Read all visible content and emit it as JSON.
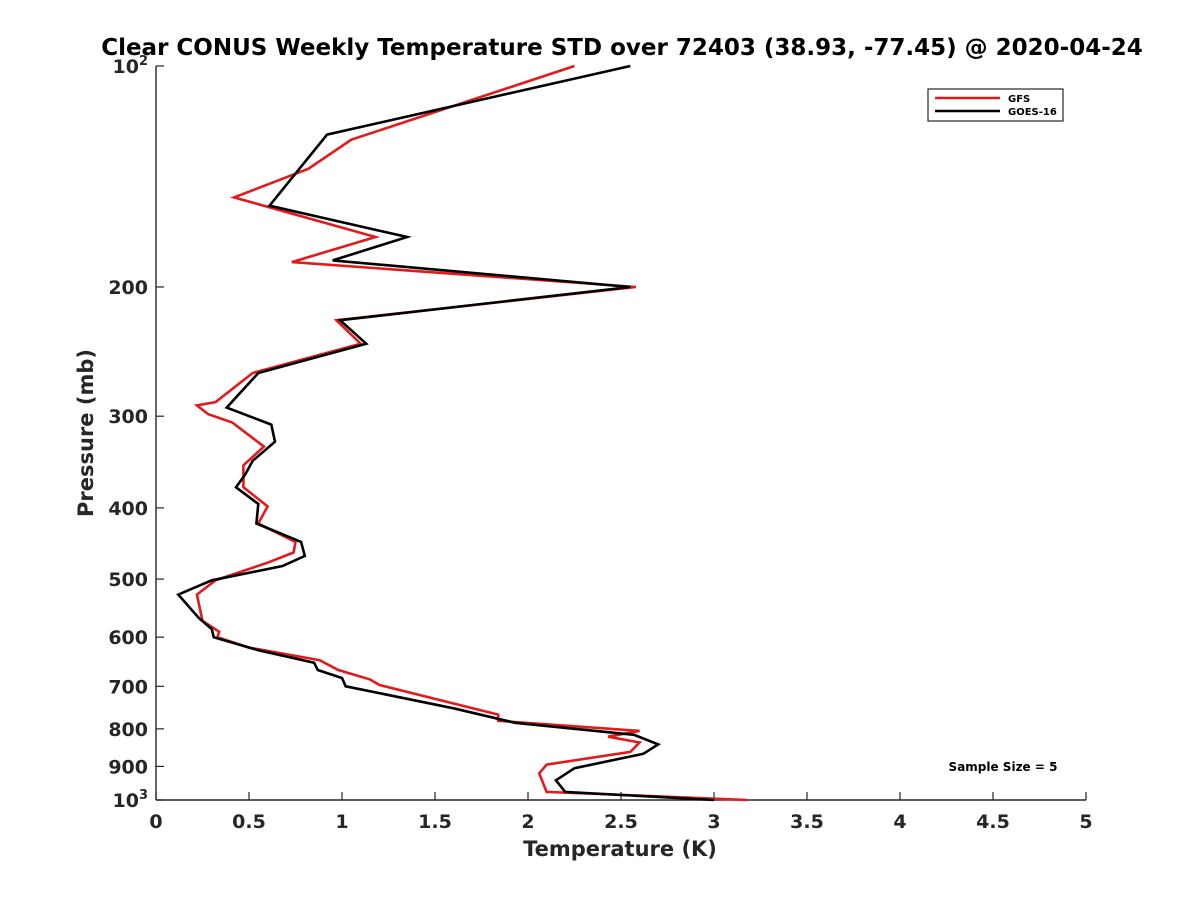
{
  "chart_data": {
    "type": "line",
    "title": "Clear CONUS Weekly Temperature STD over 72403 (38.93, -77.45) @ 2020-04-24",
    "xlabel": "Temperature (K)",
    "ylabel": "Pressure (mb)",
    "xlim": [
      0,
      5
    ],
    "ylim": [
      100,
      1000
    ],
    "y_scale": "log",
    "y_reversed": true,
    "x_ticks": [
      "0",
      "0.5",
      "1",
      "1.5",
      "2",
      "2.5",
      "3",
      "3.5",
      "4",
      "4.5",
      "5"
    ],
    "y_ticks": [
      {
        "value": 100,
        "base": "10",
        "exp": "2"
      },
      {
        "value": 200,
        "label": "200"
      },
      {
        "value": 300,
        "label": "300"
      },
      {
        "value": 400,
        "label": "400"
      },
      {
        "value": 500,
        "label": "500"
      },
      {
        "value": 600,
        "label": "600"
      },
      {
        "value": 700,
        "label": "700"
      },
      {
        "value": 800,
        "label": "800"
      },
      {
        "value": 900,
        "label": "900"
      },
      {
        "value": 1000,
        "base": "10",
        "exp": "3"
      }
    ],
    "grid": false,
    "legend_position": "top-right",
    "series": [
      {
        "name": "GFS",
        "color": "#e31a1c",
        "points": [
          [
            2.25,
            100
          ],
          [
            1.05,
            126
          ],
          [
            0.82,
            138
          ],
          [
            0.42,
            151
          ],
          [
            1.18,
            171
          ],
          [
            0.73,
            185
          ],
          [
            2.58,
            200
          ],
          [
            0.97,
            222
          ],
          [
            1.1,
            239
          ],
          [
            0.52,
            262
          ],
          [
            0.32,
            287
          ],
          [
            0.22,
            290
          ],
          [
            0.28,
            298
          ],
          [
            0.41,
            306
          ],
          [
            0.58,
            330
          ],
          [
            0.47,
            350
          ],
          [
            0.47,
            375
          ],
          [
            0.6,
            398
          ],
          [
            0.55,
            420
          ],
          [
            0.75,
            445
          ],
          [
            0.74,
            460
          ],
          [
            0.6,
            475
          ],
          [
            0.32,
            502
          ],
          [
            0.22,
            525
          ],
          [
            0.25,
            570
          ],
          [
            0.34,
            590
          ],
          [
            0.33,
            600
          ],
          [
            0.5,
            620
          ],
          [
            0.88,
            645
          ],
          [
            0.98,
            665
          ],
          [
            1.15,
            685
          ],
          [
            1.2,
            697
          ],
          [
            1.84,
            765
          ],
          [
            1.84,
            780
          ],
          [
            2.6,
            805
          ],
          [
            2.43,
            820
          ],
          [
            2.6,
            835
          ],
          [
            2.55,
            860
          ],
          [
            2.1,
            895
          ],
          [
            2.06,
            920
          ],
          [
            2.1,
            975
          ],
          [
            3.18,
            1000
          ]
        ]
      },
      {
        "name": "GOES-16",
        "color": "#000000",
        "points": [
          [
            2.55,
            100
          ],
          [
            0.92,
            124
          ],
          [
            0.61,
            155
          ],
          [
            1.35,
            171
          ],
          [
            0.95,
            184
          ],
          [
            2.55,
            200
          ],
          [
            0.99,
            222
          ],
          [
            1.13,
            239
          ],
          [
            0.55,
            262
          ],
          [
            0.38,
            292
          ],
          [
            0.62,
            308
          ],
          [
            0.64,
            325
          ],
          [
            0.52,
            345
          ],
          [
            0.48,
            360
          ],
          [
            0.43,
            375
          ],
          [
            0.55,
            395
          ],
          [
            0.54,
            420
          ],
          [
            0.78,
            445
          ],
          [
            0.8,
            465
          ],
          [
            0.68,
            480
          ],
          [
            0.3,
            502
          ],
          [
            0.12,
            525
          ],
          [
            0.23,
            565
          ],
          [
            0.3,
            585
          ],
          [
            0.31,
            600
          ],
          [
            0.55,
            625
          ],
          [
            0.85,
            650
          ],
          [
            0.87,
            665
          ],
          [
            1.0,
            682
          ],
          [
            1.02,
            700
          ],
          [
            1.6,
            750
          ],
          [
            1.93,
            785
          ],
          [
            2.57,
            815
          ],
          [
            2.7,
            840
          ],
          [
            2.62,
            865
          ],
          [
            2.25,
            905
          ],
          [
            2.15,
            940
          ],
          [
            2.2,
            975
          ],
          [
            3.0,
            1000
          ]
        ]
      }
    ],
    "annotation": "Sample Size = 5"
  }
}
